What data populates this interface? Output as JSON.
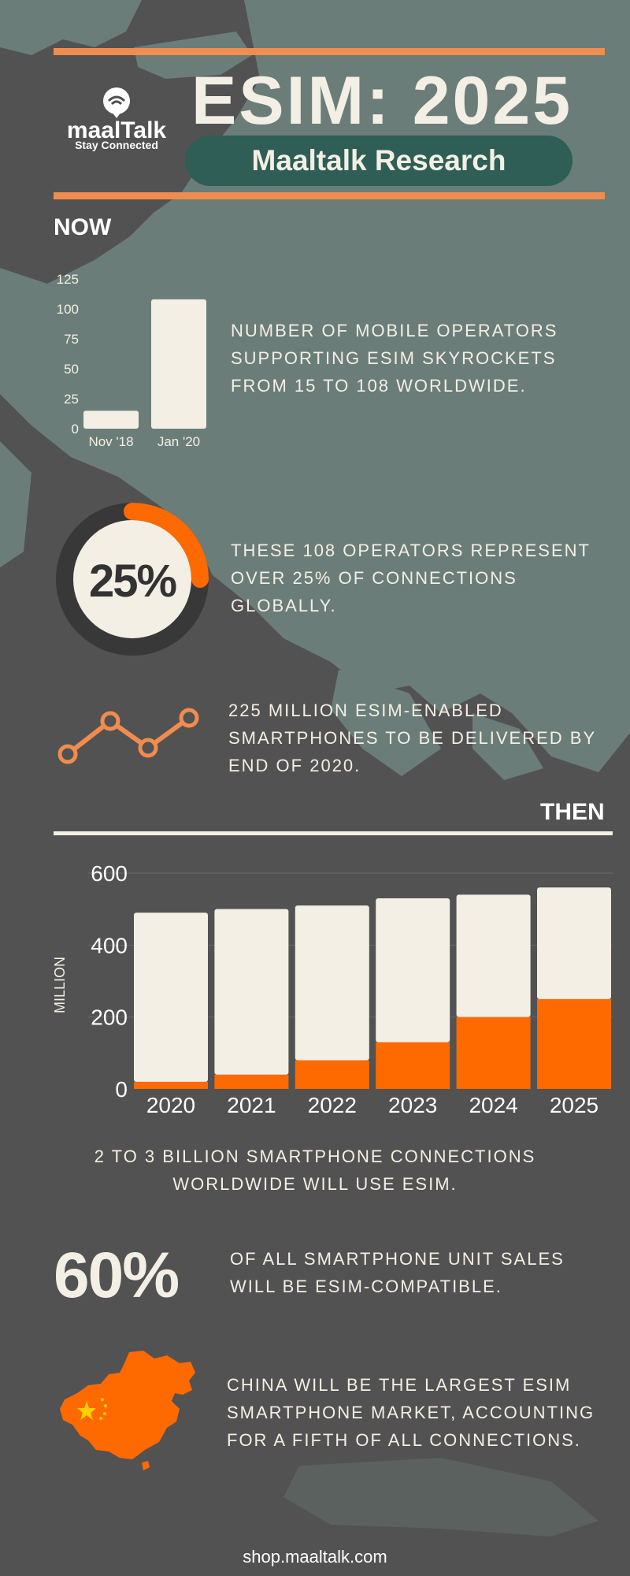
{
  "header": {
    "title": "ESIM: 2025",
    "subtitle": "Maaltalk  Research",
    "logo_name": "maalTalk",
    "logo_tagline": "Stay Connected"
  },
  "sections": {
    "now_label": "NOW",
    "then_label": "THEN"
  },
  "now": {
    "operators_text": "NUMBER OF MOBILE OPERATORS SUPPORTING ESIM SKYROCKETS FROM 15 TO 108 WORLDWIDE.",
    "share_stat": "25%",
    "share_text": "THESE 108 OPERATORS REPRESENT OVER 25% OF CONNECTIONS GLOBALLY.",
    "devices_text": "225 MILLION ESIM-ENABLED SMARTPHONES TO BE DELIVERED BY END OF 2020."
  },
  "then": {
    "connections_text": "2 TO 3 BILLION SMARTPHONE CONNECTIONS WORLDWIDE WILL USE ESIM.",
    "sales_stat": "60%",
    "sales_text": "OF ALL SMARTPHONE UNIT SALES WILL BE ESIM-COMPATIBLE.",
    "china_text": "CHINA WILL BE THE LARGEST ESIM SMARTPHONE MARKET, ACCOUNTING FOR A FIFTH OF ALL CONNECTIONS."
  },
  "footer": {
    "url": "shop.maaltalk.com"
  },
  "colors": {
    "background": "#525252",
    "map": "#6b7d79",
    "accent": "#f08c4e",
    "orange": "#ff6a00",
    "cream": "#f4efe4",
    "teal": "#2e5e55",
    "ring_dark": "#383838"
  },
  "icons": [
    "wifi-signal-icon",
    "trend-line-icon",
    "china-map-icon"
  ],
  "chart_data": [
    {
      "type": "bar",
      "title": "",
      "xlabel": "",
      "ylabel": "",
      "categories": [
        "Nov '18",
        "Jan '20"
      ],
      "values": [
        15,
        108
      ],
      "ylim": [
        0,
        125
      ],
      "yticks": [
        0,
        25,
        50,
        75,
        100,
        125
      ],
      "grid": false
    },
    {
      "type": "pie",
      "title": "",
      "values": [
        25,
        75
      ],
      "center_label": "25%"
    },
    {
      "type": "bar",
      "stacked": true,
      "title": "",
      "xlabel": "",
      "ylabel": "MILLION",
      "categories": [
        "2020",
        "2021",
        "2022",
        "2023",
        "2024",
        "2025"
      ],
      "series": [
        {
          "values": [
            20,
            40,
            80,
            130,
            200,
            250
          ]
        },
        {
          "values": [
            470,
            460,
            430,
            400,
            340,
            310
          ]
        }
      ],
      "totals": [
        490,
        500,
        510,
        530,
        540,
        560
      ],
      "ylim": [
        0,
        600
      ],
      "yticks": [
        0,
        200,
        400,
        600
      ],
      "grid": true
    }
  ]
}
